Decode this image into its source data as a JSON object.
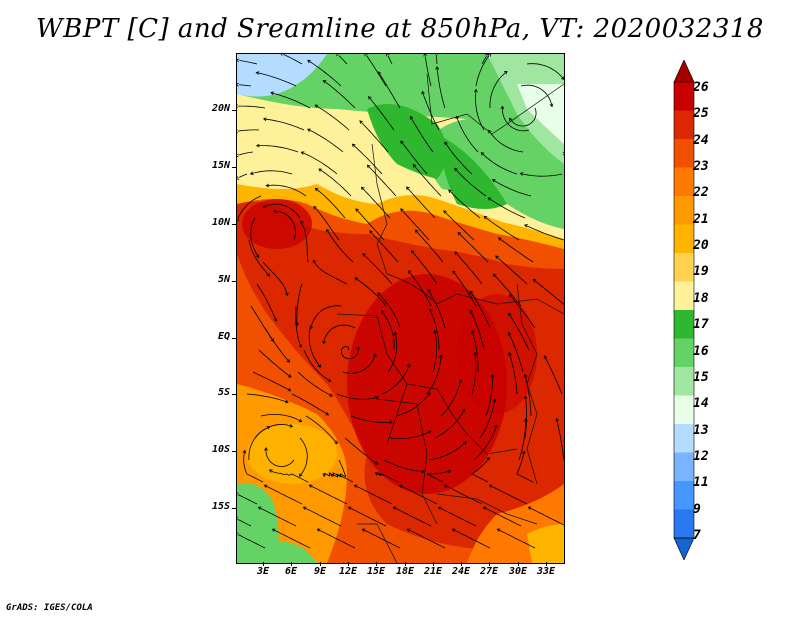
{
  "title": "WBPT [C] and Sreamline at 850hPa, VT: 2020032318",
  "footer": "GrADS: IGES/COLA",
  "map": {
    "y_labels": [
      "20N",
      "15N",
      "10N",
      "5N",
      "EQ",
      "5S",
      "10S",
      "15S"
    ],
    "x_labels": [
      "3E",
      "6E",
      "9E",
      "12E",
      "15E",
      "18E",
      "21E",
      "24E",
      "27E",
      "30E",
      "33E"
    ]
  },
  "colorbar": {
    "labels": [
      "26",
      "25",
      "24",
      "23",
      "22",
      "21",
      "20",
      "19",
      "18",
      "17",
      "16",
      "15",
      "14",
      "13",
      "12",
      "11",
      "9",
      "7"
    ],
    "colors": [
      "#a50000",
      "#c80000",
      "#dc2800",
      "#f05000",
      "#ff7800",
      "#ff9900",
      "#ffb400",
      "#ffd250",
      "#fff09a",
      "#2fb82f",
      "#64d264",
      "#a0e6a0",
      "#e6ffe6",
      "#b4dcff",
      "#78b4ff",
      "#4696ff",
      "#2878f0",
      "#1464d2"
    ]
  }
}
